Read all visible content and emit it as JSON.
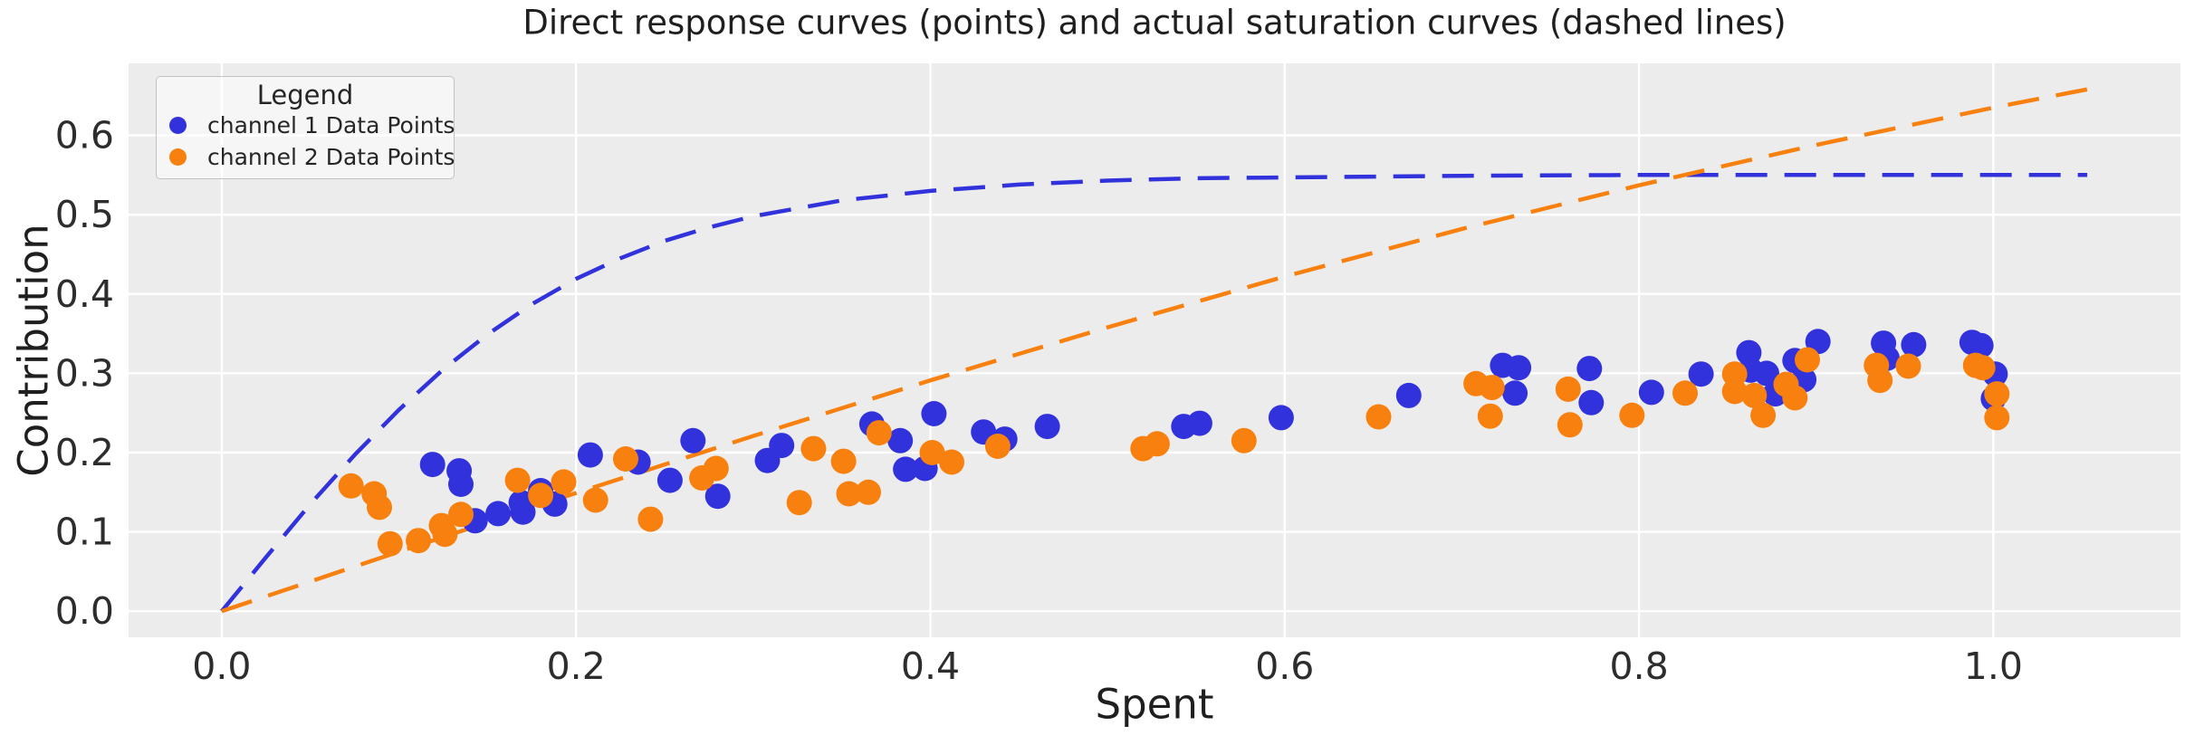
{
  "figure": {
    "background": "#ffffff"
  },
  "legend": {
    "title": "Legend",
    "entries": [
      {
        "label": "channel 1 Data Points",
        "color": "#3232DC"
      },
      {
        "label": "channel 2 Data Points",
        "color": "#F8800E"
      }
    ]
  },
  "chart_data": {
    "type": "scatter",
    "title": "Direct response curves (points) and actual saturation curves (dashed lines)",
    "xlabel": "Spent",
    "ylabel": "Contribution",
    "xlim": [
      -0.0526,
      1.1056
    ],
    "ylim": [
      -0.0329,
      0.6908
    ],
    "x_tick_labels": [
      "0.0",
      "0.2",
      "0.4",
      "0.6",
      "0.8",
      "1.0"
    ],
    "x_tick_values": [
      0.0,
      0.2,
      0.4,
      0.6,
      0.8,
      1.0
    ],
    "y_tick_labels": [
      "0.0",
      "0.1",
      "0.2",
      "0.3",
      "0.4",
      "0.5",
      "0.6"
    ],
    "y_tick_values": [
      0.0,
      0.1,
      0.2,
      0.3,
      0.4,
      0.5,
      0.6
    ],
    "grid": true,
    "legend_position": "upper left",
    "panel_background": "#ECECEC",
    "grid_color": "#FFFFFF",
    "tick_color": "#2d2d2d",
    "series": [
      {
        "name": "channel 1 Data Points",
        "kind": "scatter",
        "color": "#3232DC",
        "points": [
          [
            0.119,
            0.185
          ],
          [
            0.134,
            0.177
          ],
          [
            0.135,
            0.16
          ],
          [
            0.143,
            0.114
          ],
          [
            0.156,
            0.123
          ],
          [
            0.169,
            0.137
          ],
          [
            0.17,
            0.125
          ],
          [
            0.18,
            0.152
          ],
          [
            0.188,
            0.135
          ],
          [
            0.208,
            0.197
          ],
          [
            0.235,
            0.188
          ],
          [
            0.253,
            0.165
          ],
          [
            0.266,
            0.215
          ],
          [
            0.28,
            0.145
          ],
          [
            0.308,
            0.19
          ],
          [
            0.316,
            0.209
          ],
          [
            0.367,
            0.236
          ],
          [
            0.383,
            0.215
          ],
          [
            0.386,
            0.179
          ],
          [
            0.397,
            0.18
          ],
          [
            0.402,
            0.249
          ],
          [
            0.43,
            0.226
          ],
          [
            0.442,
            0.217
          ],
          [
            0.466,
            0.233
          ],
          [
            0.543,
            0.233
          ],
          [
            0.552,
            0.237
          ],
          [
            0.598,
            0.244
          ],
          [
            0.67,
            0.272
          ],
          [
            0.723,
            0.31
          ],
          [
            0.732,
            0.307
          ],
          [
            0.73,
            0.275
          ],
          [
            0.772,
            0.306
          ],
          [
            0.773,
            0.263
          ],
          [
            0.807,
            0.276
          ],
          [
            0.835,
            0.299
          ],
          [
            0.862,
            0.326
          ],
          [
            0.863,
            0.304
          ],
          [
            0.872,
            0.3
          ],
          [
            0.877,
            0.274
          ],
          [
            0.888,
            0.316
          ],
          [
            0.893,
            0.292
          ],
          [
            0.901,
            0.34
          ],
          [
            0.938,
            0.338
          ],
          [
            0.94,
            0.319
          ],
          [
            0.955,
            0.336
          ],
          [
            0.988,
            0.339
          ],
          [
            0.993,
            0.335
          ],
          [
            1.001,
            0.299
          ],
          [
            1.0,
            0.268
          ]
        ]
      },
      {
        "name": "channel 2 Data Points",
        "kind": "scatter",
        "color": "#F8800E",
        "points": [
          [
            0.073,
            0.158
          ],
          [
            0.086,
            0.148
          ],
          [
            0.089,
            0.131
          ],
          [
            0.095,
            0.085
          ],
          [
            0.111,
            0.089
          ],
          [
            0.124,
            0.108
          ],
          [
            0.126,
            0.097
          ],
          [
            0.135,
            0.122
          ],
          [
            0.167,
            0.165
          ],
          [
            0.18,
            0.146
          ],
          [
            0.193,
            0.163
          ],
          [
            0.211,
            0.14
          ],
          [
            0.228,
            0.192
          ],
          [
            0.242,
            0.116
          ],
          [
            0.271,
            0.168
          ],
          [
            0.279,
            0.18
          ],
          [
            0.326,
            0.137
          ],
          [
            0.334,
            0.205
          ],
          [
            0.351,
            0.189
          ],
          [
            0.354,
            0.148
          ],
          [
            0.365,
            0.15
          ],
          [
            0.371,
            0.225
          ],
          [
            0.401,
            0.2
          ],
          [
            0.412,
            0.188
          ],
          [
            0.438,
            0.208
          ],
          [
            0.52,
            0.205
          ],
          [
            0.528,
            0.211
          ],
          [
            0.577,
            0.215
          ],
          [
            0.653,
            0.245
          ],
          [
            0.708,
            0.287
          ],
          [
            0.717,
            0.282
          ],
          [
            0.716,
            0.246
          ],
          [
            0.76,
            0.28
          ],
          [
            0.761,
            0.235
          ],
          [
            0.796,
            0.247
          ],
          [
            0.826,
            0.275
          ],
          [
            0.854,
            0.299
          ],
          [
            0.854,
            0.277
          ],
          [
            0.865,
            0.272
          ],
          [
            0.87,
            0.247
          ],
          [
            0.883,
            0.286
          ],
          [
            0.888,
            0.269
          ],
          [
            0.895,
            0.317
          ],
          [
            0.934,
            0.31
          ],
          [
            0.936,
            0.291
          ],
          [
            0.952,
            0.309
          ],
          [
            0.99,
            0.31
          ],
          [
            0.994,
            0.307
          ],
          [
            1.002,
            0.274
          ],
          [
            1.002,
            0.244
          ]
        ]
      },
      {
        "name": "channel 1 saturation curve",
        "kind": "dashed-line",
        "color": "#3232DC",
        "points": [
          [
            0.0,
            0.0
          ],
          [
            0.025,
            0.068
          ],
          [
            0.05,
            0.135
          ],
          [
            0.075,
            0.197
          ],
          [
            0.1,
            0.254
          ],
          [
            0.125,
            0.305
          ],
          [
            0.15,
            0.349
          ],
          [
            0.175,
            0.387
          ],
          [
            0.2,
            0.419
          ],
          [
            0.225,
            0.445
          ],
          [
            0.25,
            0.467
          ],
          [
            0.275,
            0.484
          ],
          [
            0.3,
            0.498
          ],
          [
            0.35,
            0.518
          ],
          [
            0.4,
            0.53
          ],
          [
            0.45,
            0.538
          ],
          [
            0.5,
            0.543
          ],
          [
            0.55,
            0.546
          ],
          [
            0.6,
            0.547
          ],
          [
            0.7,
            0.549
          ],
          [
            0.8,
            0.55
          ],
          [
            0.9,
            0.55
          ],
          [
            1.0,
            0.55
          ],
          [
            1.053,
            0.55
          ]
        ]
      },
      {
        "name": "channel 2 saturation curve",
        "kind": "dashed-line",
        "color": "#F8800E",
        "points": [
          [
            0.0,
            0.0
          ],
          [
            0.1,
            0.075
          ],
          [
            0.2,
            0.149
          ],
          [
            0.3,
            0.221
          ],
          [
            0.4,
            0.291
          ],
          [
            0.5,
            0.358
          ],
          [
            0.6,
            0.422
          ],
          [
            0.7,
            0.482
          ],
          [
            0.8,
            0.537
          ],
          [
            0.9,
            0.588
          ],
          [
            1.0,
            0.635
          ],
          [
            1.053,
            0.658
          ]
        ]
      }
    ]
  }
}
